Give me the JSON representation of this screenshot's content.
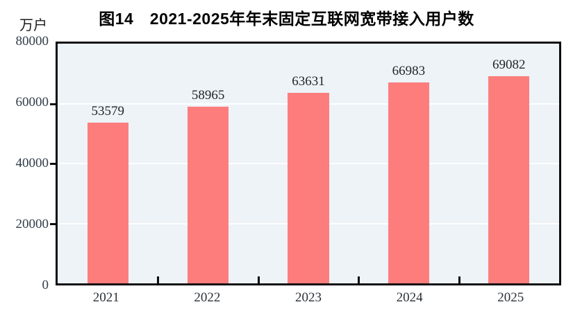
{
  "unit_label": "万户",
  "title": "图14　2021-2025年年末固定互联网宽带接入用户数",
  "colors": {
    "bar": "#fd7d7d",
    "plot_background": "#edf3f7",
    "gridline": "#ffffff",
    "axis": "#0d0d0d",
    "tick_label_text": "#313d49",
    "value_label_text": "#21262b"
  },
  "chart_data": {
    "type": "bar",
    "categories": [
      "2021",
      "2022",
      "2023",
      "2024",
      "2025"
    ],
    "values": [
      53579,
      58965,
      63631,
      66983,
      69082
    ],
    "bar_labels": [
      53579,
      58965,
      63631,
      66983,
      69082
    ],
    "title": "图14　2021-2025年年末固定互联网宽带接入用户数",
    "xlabel": "",
    "ylabel": "万户",
    "ylim": [
      0,
      80000
    ],
    "yticks": [
      0,
      20000,
      40000,
      60000,
      80000
    ],
    "grid": true,
    "legend_position": "none"
  }
}
